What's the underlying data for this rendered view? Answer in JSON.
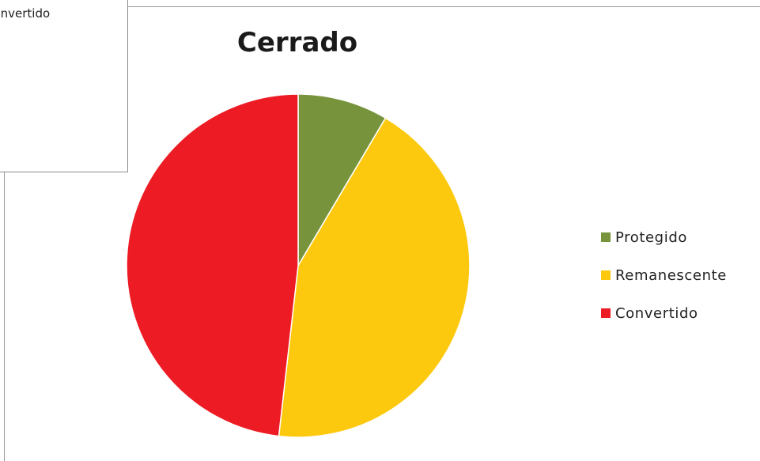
{
  "background_chart": {
    "visible_legend_label": "Convertido"
  },
  "chart_data": {
    "type": "pie",
    "title": "Cerrado",
    "categories": [
      "Protegido",
      "Remanescente",
      "Convertido"
    ],
    "values": [
      8.5,
      43.3,
      48.2
    ],
    "units": "percent",
    "start_angle_deg": 0,
    "direction": "clockwise",
    "colors": [
      "#77933c",
      "#fdc90f",
      "#ed1c24"
    ],
    "legend_position": "right"
  }
}
